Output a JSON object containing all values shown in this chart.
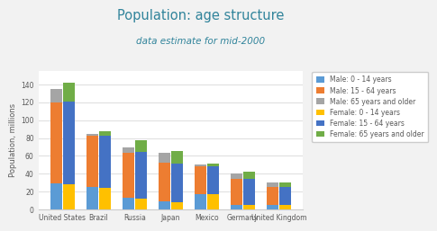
{
  "title": "Population: age structure",
  "subtitle": "data estimate for mid-2000",
  "ylabel": "Population, millions",
  "countries": [
    "United States",
    "Brazil",
    "Russia",
    "Japan",
    "Mexico",
    "Germany",
    "United Kingdom"
  ],
  "male": {
    "0_14": [
      29,
      25,
      13,
      9,
      17,
      5,
      5
    ],
    "15_64": [
      91,
      58,
      50,
      43,
      31,
      29,
      20
    ],
    "65plus": [
      15,
      2,
      6,
      11,
      2,
      6,
      5
    ]
  },
  "female": {
    "0_14": [
      28,
      24,
      12,
      8,
      17,
      5,
      5
    ],
    "15_64": [
      93,
      59,
      52,
      43,
      31,
      29,
      20
    ],
    "65plus": [
      21,
      5,
      14,
      14,
      3,
      8,
      5
    ]
  },
  "colors": {
    "male_0_14": "#5b9bd5",
    "male_15_64": "#ed7d31",
    "male_65plus": "#a5a5a5",
    "female_0_14": "#ffc000",
    "female_15_64": "#4472c4",
    "female_65plus": "#70ad47"
  },
  "legend_labels": [
    "Male: 0 - 14 years",
    "Male: 15 - 64 years",
    "Male: 65 years and older",
    "Female: 0 - 14 years",
    "Female: 15 - 64 years",
    "Female: 65 years and older"
  ],
  "ylim": [
    0,
    155
  ],
  "yticks": [
    0,
    20,
    40,
    60,
    80,
    100,
    120,
    140
  ],
  "fig_background": "#f2f2f2",
  "plot_background": "#ffffff",
  "title_color": "#31849b",
  "subtitle_color": "#31849b",
  "text_color": "#595959",
  "grid_color": "#e0e0e0",
  "bar_width": 0.33,
  "bar_gap": 0.01
}
